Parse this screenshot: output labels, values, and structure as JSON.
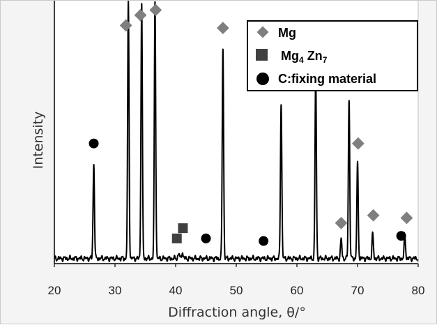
{
  "chart_data": {
    "type": "line",
    "title": "",
    "xlabel": "Diffraction angle, θ/°",
    "ylabel": "Intensity",
    "xlim": [
      20,
      80
    ],
    "x_ticks": [
      20,
      30,
      40,
      50,
      60,
      70,
      80
    ],
    "ylim": [
      0,
      100
    ],
    "y_ticks_shown": false,
    "grid": false,
    "legend_position": "top-right",
    "series": [
      {
        "peaks": [
          {
            "x": 26.5,
            "y": 37
          },
          {
            "x": 32.2,
            "y": 100
          },
          {
            "x": 34.4,
            "y": 100
          },
          {
            "x": 36.6,
            "y": 100
          },
          {
            "x": 40.5,
            "y": 2
          },
          {
            "x": 41.1,
            "y": 2.5
          },
          {
            "x": 47.8,
            "y": 82
          },
          {
            "x": 57.4,
            "y": 61
          },
          {
            "x": 63.1,
            "y": 72
          },
          {
            "x": 67.3,
            "y": 7.5
          },
          {
            "x": 68.6,
            "y": 62
          },
          {
            "x": 70.0,
            "y": 37
          },
          {
            "x": 72.5,
            "y": 9.5
          },
          {
            "x": 77.8,
            "y": 9
          }
        ]
      }
    ],
    "legend": [
      {
        "label": "Mg",
        "marker": "diamond",
        "color": "#7f7f7f"
      },
      {
        "label": "Mg",
        "sub1": "4",
        "label2": " Zn",
        "sub2": "7",
        "marker": "square",
        "color": "#404040"
      },
      {
        "label": "C:fixing material",
        "marker": "circle",
        "color": "#000000"
      }
    ],
    "markers": [
      {
        "phase": "C:fixing material",
        "shape": "circle",
        "x": 26.5,
        "y": 46
      },
      {
        "phase": "Mg",
        "shape": "diamond",
        "x": 31.8,
        "y": 92
      },
      {
        "phase": "Mg",
        "shape": "diamond",
        "x": 34.2,
        "y": 96
      },
      {
        "phase": "Mg",
        "shape": "diamond",
        "x": 36.7,
        "y": 98
      },
      {
        "phase": "Mg4 Zn7",
        "shape": "square",
        "x": 40.2,
        "y": 9
      },
      {
        "phase": "Mg4 Zn7",
        "shape": "square",
        "x": 41.2,
        "y": 13
      },
      {
        "phase": "C:fixing material",
        "shape": "circle",
        "x": 45.0,
        "y": 9
      },
      {
        "phase": "Mg",
        "shape": "diamond",
        "x": 47.8,
        "y": 91
      },
      {
        "phase": "C:fixing material",
        "shape": "circle",
        "x": 54.5,
        "y": 8
      },
      {
        "phase": "Mg",
        "shape": "diamond",
        "x": 57.3,
        "y": 71
      },
      {
        "phase": "Mg",
        "shape": "diamond",
        "x": 63.0,
        "y": 76
      },
      {
        "phase": "Mg",
        "shape": "diamond",
        "x": 67.3,
        "y": 15
      },
      {
        "phase": "Mg",
        "shape": "diamond",
        "x": 68.6,
        "y": 70
      },
      {
        "phase": "Mg",
        "shape": "diamond",
        "x": 70.1,
        "y": 46
      },
      {
        "phase": "Mg",
        "shape": "diamond",
        "x": 72.6,
        "y": 18
      },
      {
        "phase": "C:fixing material",
        "shape": "circle",
        "x": 77.2,
        "y": 10
      },
      {
        "phase": "Mg",
        "shape": "diamond",
        "x": 78.1,
        "y": 17
      }
    ]
  },
  "colors": {
    "background": "#f4f4f4",
    "plot_area": "#ffffff",
    "trace": "#000000",
    "mg_marker": "#7f7f7f",
    "mgzn_marker": "#404040",
    "c_marker": "#000000"
  }
}
